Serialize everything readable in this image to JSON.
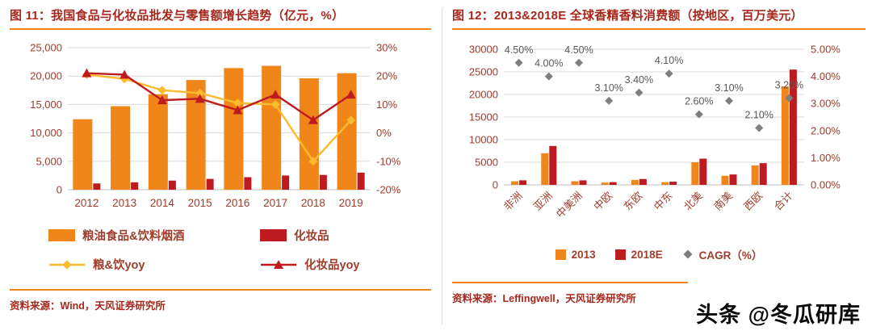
{
  "page": {
    "watermark": "头条 @冬瓜研库",
    "background": "#FFFFFF"
  },
  "colors": {
    "orange": "#F0861A",
    "dark_red": "#BE1B20",
    "yellow": "#FCBB2D",
    "gray": "#7F7F7F",
    "title_text": "#A6281C",
    "axis_text": "#9E3D2B",
    "cagr_label": "#595959",
    "gridline": "#D9D9D9",
    "axis_line": "#BFBFBF",
    "divider": "#DCDCDC",
    "watermark_text": "#0A0A0A"
  },
  "left_panel": {
    "title": "图 11：我国食品与化妆品批发与零售额增长趋势（亿元，%）",
    "source": "资料来源：Wind，天风证券研究所",
    "legend_items": [
      {
        "label": "粮油食品&饮料烟酒",
        "swatch": "rect",
        "color": "#F0861A"
      },
      {
        "label": "化妆品",
        "swatch": "rect",
        "color": "#BE1B20"
      },
      {
        "label": "粮&饮yoy",
        "swatch": "diamond-line",
        "color": "#FCBB2D"
      },
      {
        "label": "化妆品yoy",
        "swatch": "triangle-line",
        "color": "#BE1B20"
      }
    ]
  },
  "right_panel": {
    "title": "图 12：2013&2018E 全球香精香料消费额（按地区，百万美元）",
    "source": "资料来源：Leffingwell，天风证券研究所",
    "legend_items": [
      {
        "label": "2013",
        "swatch": "rect-small",
        "color": "#F0861A"
      },
      {
        "label": "2018E",
        "swatch": "rect-small",
        "color": "#BE1B20"
      },
      {
        "label": "CAGR（%）",
        "swatch": "diamond",
        "color": "#7F7F7F"
      }
    ]
  },
  "chart_data": [
    {
      "type": "bar",
      "subtype": "combo-bar-line-dual-axis",
      "title": "我国食品与化妆品批发与零售额增长趋势（亿元，%）",
      "categories": [
        "2012",
        "2013",
        "2014",
        "2015",
        "2016",
        "2017",
        "2018",
        "2019"
      ],
      "series": [
        {
          "name": "粮油食品&饮料烟酒",
          "kind": "bar",
          "axis": "left",
          "color": "#F0861A",
          "values": [
            12400,
            14700,
            16800,
            19300,
            21400,
            21800,
            19600,
            20500
          ]
        },
        {
          "name": "化妆品",
          "kind": "bar",
          "axis": "left",
          "color": "#BE1B20",
          "values": [
            1100,
            1300,
            1600,
            1900,
            2200,
            2500,
            2600,
            3000
          ]
        },
        {
          "name": "粮&饮yoy",
          "kind": "line",
          "marker": "diamond",
          "axis": "right",
          "color": "#FCBB2D",
          "values": [
            20.5,
            19,
            15,
            14,
            10.5,
            10,
            -10,
            4.5
          ]
        },
        {
          "name": "化妆品yoy",
          "kind": "line",
          "marker": "triangle",
          "axis": "right",
          "color": "#BE1B20",
          "values": [
            21,
            20.5,
            11.5,
            12,
            8,
            13.5,
            4.5,
            13.5
          ]
        }
      ],
      "left_axis": {
        "min": 0,
        "max": 25000,
        "step": 5000,
        "tick_labels": [
          "0",
          "5,000",
          "10,000",
          "15,000",
          "20,000",
          "25,000"
        ]
      },
      "right_axis": {
        "min": -20,
        "max": 30,
        "step": 10,
        "tick_labels": [
          "-20%",
          "-10%",
          "0%",
          "10%",
          "20%",
          "30%"
        ]
      },
      "grid": true,
      "legend_position": "bottom"
    },
    {
      "type": "bar",
      "subtype": "grouped-bar-with-scatter-dual-axis",
      "title": "2013&2018E 全球香精香料消费额（按地区，百万美元）",
      "categories": [
        "非洲",
        "亚洲",
        "中美洲",
        "中欧",
        "东欧",
        "中东",
        "北美",
        "南美",
        "西欧",
        "合计"
      ],
      "series": [
        {
          "name": "2013",
          "kind": "bar",
          "axis": "left",
          "color": "#F0861A",
          "values": [
            800,
            7000,
            800,
            500,
            1100,
            600,
            5000,
            2000,
            4300,
            21800
          ]
        },
        {
          "name": "2018E",
          "kind": "bar",
          "axis": "left",
          "color": "#BE1B20",
          "values": [
            1000,
            8600,
            1000,
            600,
            1300,
            700,
            5800,
            2300,
            4800,
            25500
          ]
        },
        {
          "name": "CAGR（%）",
          "kind": "scatter",
          "marker": "diamond",
          "axis": "right",
          "color": "#7F7F7F",
          "values": [
            4.5,
            4.0,
            4.5,
            3.1,
            3.4,
            4.1,
            2.6,
            3.1,
            2.1,
            3.2
          ],
          "point_labels": [
            "4.50%",
            "4.00%",
            "4.50%",
            "3.10%",
            "3.40%",
            "4.10%",
            "2.60%",
            "3.10%",
            "2.10%",
            "3.20%"
          ]
        }
      ],
      "left_axis": {
        "min": 0,
        "max": 30000,
        "step": 5000,
        "tick_labels": [
          "0",
          "5000",
          "10000",
          "15000",
          "20000",
          "25000",
          "30000"
        ]
      },
      "right_axis": {
        "min": 0,
        "max": 5,
        "step": 1,
        "tick_labels": [
          "0.00%",
          "1.00%",
          "2.00%",
          "3.00%",
          "4.00%",
          "5.00%"
        ]
      },
      "grid": true,
      "legend_position": "bottom"
    }
  ]
}
